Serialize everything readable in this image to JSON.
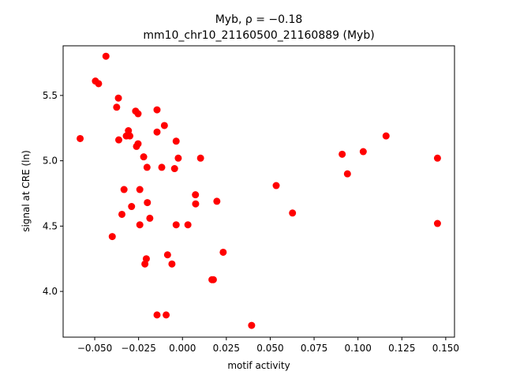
{
  "chart_data": {
    "type": "scatter",
    "title_line1": "Myb, ρ = −0.18",
    "title_line2": "mm10_chr10_21160500_21160889 (Myb)",
    "xlabel": "motif activity",
    "ylabel": "signal at CRE (ln)",
    "xlim": [
      -0.068,
      0.155
    ],
    "ylim": [
      3.65,
      5.88
    ],
    "xticks": [
      -0.05,
      -0.025,
      0.0,
      0.025,
      0.05,
      0.075,
      0.1,
      0.125,
      0.15
    ],
    "xtick_labels": [
      "−0.050",
      "−0.025",
      "0.000",
      "0.025",
      "0.050",
      "0.075",
      "0.100",
      "0.125",
      "0.150"
    ],
    "yticks": [
      4.0,
      4.5,
      5.0,
      5.5
    ],
    "ytick_labels": [
      "4.0",
      "4.5",
      "5.0",
      "5.5"
    ],
    "grid": false,
    "marker_color": "#ff0000",
    "points": [
      {
        "x": -0.0583,
        "y": 5.17
      },
      {
        "x": -0.0436,
        "y": 5.8
      },
      {
        "x": -0.0496,
        "y": 5.61
      },
      {
        "x": -0.0478,
        "y": 5.59
      },
      {
        "x": -0.0365,
        "y": 5.48
      },
      {
        "x": -0.0375,
        "y": 5.41
      },
      {
        "x": -0.0267,
        "y": 5.38
      },
      {
        "x": -0.0253,
        "y": 5.36
      },
      {
        "x": -0.0145,
        "y": 5.39
      },
      {
        "x": -0.0103,
        "y": 5.27
      },
      {
        "x": -0.0308,
        "y": 5.23
      },
      {
        "x": -0.032,
        "y": 5.19
      },
      {
        "x": -0.03,
        "y": 5.19
      },
      {
        "x": -0.0145,
        "y": 5.22
      },
      {
        "x": -0.0363,
        "y": 5.16
      },
      {
        "x": -0.0253,
        "y": 5.13
      },
      {
        "x": -0.0262,
        "y": 5.11
      },
      {
        "x": -0.0036,
        "y": 5.15
      },
      {
        "x": -0.0221,
        "y": 5.03
      },
      {
        "x": -0.0024,
        "y": 5.02
      },
      {
        "x": 0.0103,
        "y": 5.02
      },
      {
        "x": -0.0202,
        "y": 4.95
      },
      {
        "x": -0.0118,
        "y": 4.95
      },
      {
        "x": -0.0045,
        "y": 4.94
      },
      {
        "x": -0.0333,
        "y": 4.78
      },
      {
        "x": -0.0243,
        "y": 4.78
      },
      {
        "x": 0.0074,
        "y": 4.74
      },
      {
        "x": -0.02,
        "y": 4.68
      },
      {
        "x": 0.0075,
        "y": 4.67
      },
      {
        "x": 0.0196,
        "y": 4.69
      },
      {
        "x": -0.029,
        "y": 4.65
      },
      {
        "x": -0.0345,
        "y": 4.59
      },
      {
        "x": -0.0186,
        "y": 4.56
      },
      {
        "x": -0.0243,
        "y": 4.51
      },
      {
        "x": -0.0036,
        "y": 4.51
      },
      {
        "x": 0.0031,
        "y": 4.51
      },
      {
        "x": -0.04,
        "y": 4.42
      },
      {
        "x": -0.0085,
        "y": 4.28
      },
      {
        "x": -0.0206,
        "y": 4.25
      },
      {
        "x": 0.0232,
        "y": 4.3
      },
      {
        "x": -0.0214,
        "y": 4.21
      },
      {
        "x": -0.006,
        "y": 4.21
      },
      {
        "x": 0.0168,
        "y": 4.09
      },
      {
        "x": 0.0176,
        "y": 4.09
      },
      {
        "x": -0.0145,
        "y": 3.82
      },
      {
        "x": -0.0093,
        "y": 3.82
      },
      {
        "x": 0.0394,
        "y": 3.74
      },
      {
        "x": 0.0534,
        "y": 4.81
      },
      {
        "x": 0.0627,
        "y": 4.6
      },
      {
        "x": 0.091,
        "y": 5.05
      },
      {
        "x": 0.094,
        "y": 4.9
      },
      {
        "x": 0.103,
        "y": 5.07
      },
      {
        "x": 0.116,
        "y": 5.19
      },
      {
        "x": 0.1453,
        "y": 5.02
      },
      {
        "x": 0.1453,
        "y": 4.52
      }
    ]
  }
}
